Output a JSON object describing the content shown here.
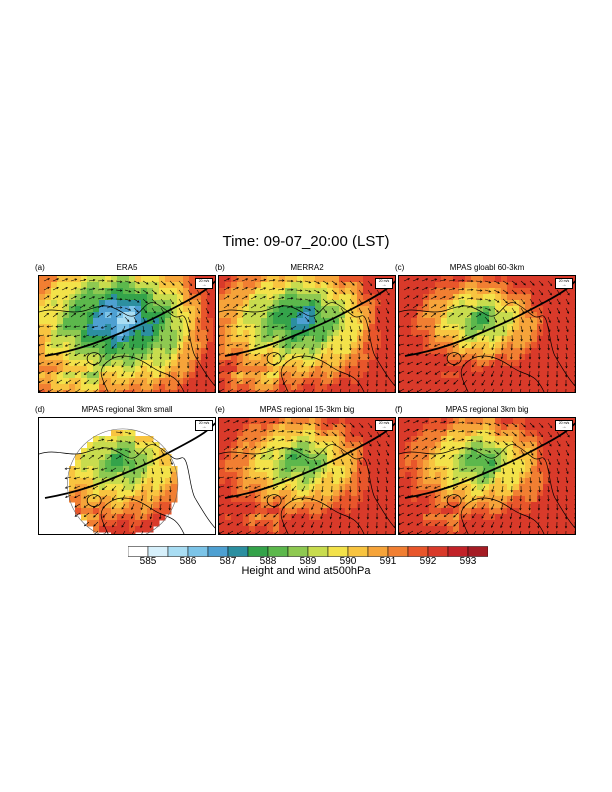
{
  "title": "Time:   09-07_20:00 (LST)",
  "panels": [
    {
      "letter": "(a)",
      "name": "ERA5",
      "mode": "full",
      "center_level": 585,
      "warmth": 1.0
    },
    {
      "letter": "(b)",
      "name": "MERRA2",
      "mode": "full",
      "center_level": 586,
      "warmth": 1.0
    },
    {
      "letter": "(c)",
      "name": "MPAS gloabl 60-3km",
      "mode": "full",
      "center_level": 587,
      "warmth": 1.15
    },
    {
      "letter": "(d)",
      "name": "MPAS regional 3km small",
      "mode": "circle",
      "center_level": 587,
      "warmth": 0.9
    },
    {
      "letter": "(e)",
      "name": "MPAS regional 15-3km big",
      "mode": "full",
      "center_level": 587,
      "warmth": 1.0
    },
    {
      "letter": "(f)",
      "name": "MPAS regional 3km big",
      "mode": "full",
      "center_level": 587,
      "warmth": 1.0
    }
  ],
  "ref_vector_label": "20 m/s",
  "colorbar": {
    "title": "Height and wind at500hPa",
    "tick_labels": [
      "585",
      "586",
      "587",
      "588",
      "589",
      "590",
      "591",
      "592",
      "593"
    ],
    "colors": [
      "#ffffff",
      "#d7f0fb",
      "#a9ddf3",
      "#7cc4e8",
      "#4ea0d2",
      "#2c8fa0",
      "#34a34a",
      "#5cb84c",
      "#8ec951",
      "#c8dc4e",
      "#f3e24a",
      "#f8c440",
      "#f6a43a",
      "#f17f32",
      "#e8562b",
      "#d93a2a",
      "#c22228",
      "#a51c24"
    ]
  }
}
